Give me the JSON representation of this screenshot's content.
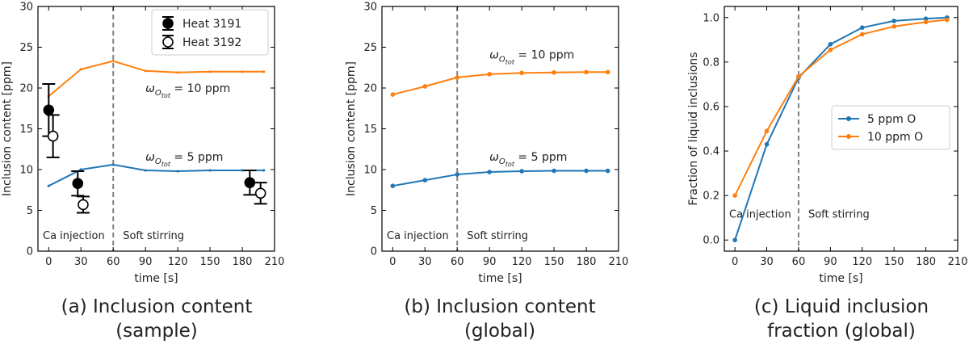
{
  "colors": {
    "blue": "#1f77b4",
    "orange": "#ff7f0e",
    "axis": "#000000",
    "divider": "#808080"
  },
  "chart_data": [
    {
      "id": "a",
      "type": "line",
      "caption_lines": [
        "(a) Inclusion content",
        "(sample)"
      ],
      "xlabel": "time [s]",
      "ylabel": "Inclusion content [ppm]",
      "xlim": [
        -10,
        210
      ],
      "ylim": [
        0,
        30
      ],
      "xticks": [
        0,
        30,
        60,
        90,
        120,
        150,
        180,
        210
      ],
      "yticks": [
        0,
        5,
        10,
        15,
        20,
        25,
        30
      ],
      "phase_divider_x": 60,
      "phase_labels": [
        "Ca injection",
        "Soft stirring"
      ],
      "series": [
        {
          "name": "10 ppm",
          "color": "orange",
          "x": [
            0,
            30,
            60,
            90,
            120,
            150,
            180,
            200
          ],
          "y": [
            19.0,
            22.3,
            23.3,
            22.1,
            21.9,
            22.0,
            22.0,
            22.0
          ]
        },
        {
          "name": "5 ppm",
          "color": "blue",
          "x": [
            0,
            30,
            60,
            90,
            120,
            150,
            180,
            200
          ],
          "y": [
            8.0,
            10.0,
            10.6,
            9.9,
            9.8,
            9.9,
            9.9,
            9.9
          ]
        }
      ],
      "measurements": [
        {
          "name": "Heat 3191",
          "filled": true,
          "x": [
            0,
            27,
            187
          ],
          "y": [
            17.3,
            8.3,
            8.4
          ],
          "err": [
            3.2,
            1.5,
            1.5
          ]
        },
        {
          "name": "Heat 3192",
          "filled": false,
          "x": [
            4,
            32,
            197
          ],
          "y": [
            14.1,
            5.7,
            7.1
          ],
          "err": [
            2.6,
            1.0,
            1.3
          ]
        }
      ],
      "annotations": [
        {
          "label": "10 ppm",
          "x": 90,
          "y": 19.5
        },
        {
          "label": "5 ppm",
          "x": 90,
          "y": 11.1
        }
      ],
      "legend": {
        "position": "top-right",
        "entries": [
          "Heat 3191",
          "Heat 3192"
        ]
      }
    },
    {
      "id": "b",
      "type": "line",
      "caption_lines": [
        "(b) Inclusion content",
        "(global)"
      ],
      "xlabel": "time [s]",
      "ylabel": "Inclusion content [ppm]",
      "xlim": [
        -10,
        210
      ],
      "ylim": [
        0,
        30
      ],
      "xticks": [
        0,
        30,
        60,
        90,
        120,
        150,
        180,
        210
      ],
      "yticks": [
        0,
        5,
        10,
        15,
        20,
        25,
        30
      ],
      "phase_divider_x": 60,
      "phase_labels": [
        "Ca injection",
        "Soft stirring"
      ],
      "series": [
        {
          "name": "10 ppm",
          "color": "orange",
          "x": [
            0,
            30,
            60,
            90,
            120,
            150,
            180,
            200
          ],
          "y": [
            19.2,
            20.2,
            21.3,
            21.7,
            21.85,
            21.9,
            21.95,
            21.95
          ]
        },
        {
          "name": "5 ppm",
          "color": "blue",
          "x": [
            0,
            30,
            60,
            90,
            120,
            150,
            180,
            200
          ],
          "y": [
            8.0,
            8.7,
            9.4,
            9.7,
            9.8,
            9.85,
            9.85,
            9.85
          ]
        }
      ],
      "annotations": [
        {
          "label": "10 ppm",
          "x": 90,
          "y": 23.6
        },
        {
          "label": "5 ppm",
          "x": 90,
          "y": 11.1
        }
      ]
    },
    {
      "id": "c",
      "type": "line",
      "caption_lines": [
        "(c) Liquid inclusion",
        "fraction (global)"
      ],
      "xlabel": "time [s]",
      "ylabel": "Fraction of liquid inclusions",
      "xlim": [
        -10,
        210
      ],
      "ylim": [
        -0.05,
        1.05
      ],
      "xticks": [
        0,
        30,
        60,
        90,
        120,
        150,
        180,
        210
      ],
      "yticks": [
        0.0,
        0.2,
        0.4,
        0.6,
        0.8,
        1.0
      ],
      "phase_divider_x": 60,
      "phase_labels": [
        "Ca injection",
        "Soft stirring"
      ],
      "series": [
        {
          "name": "5 ppm O",
          "color": "blue",
          "x": [
            0,
            30,
            60,
            90,
            120,
            150,
            180,
            200
          ],
          "y": [
            0.0,
            0.43,
            0.73,
            0.88,
            0.955,
            0.985,
            0.995,
            1.0
          ]
        },
        {
          "name": "10 ppm O",
          "color": "orange",
          "x": [
            0,
            30,
            60,
            90,
            120,
            150,
            180,
            200
          ],
          "y": [
            0.2,
            0.49,
            0.735,
            0.855,
            0.925,
            0.96,
            0.98,
            0.99
          ]
        }
      ],
      "legend": {
        "position": "center-right",
        "entries": [
          "5 ppm O",
          "10 ppm O"
        ]
      }
    }
  ]
}
